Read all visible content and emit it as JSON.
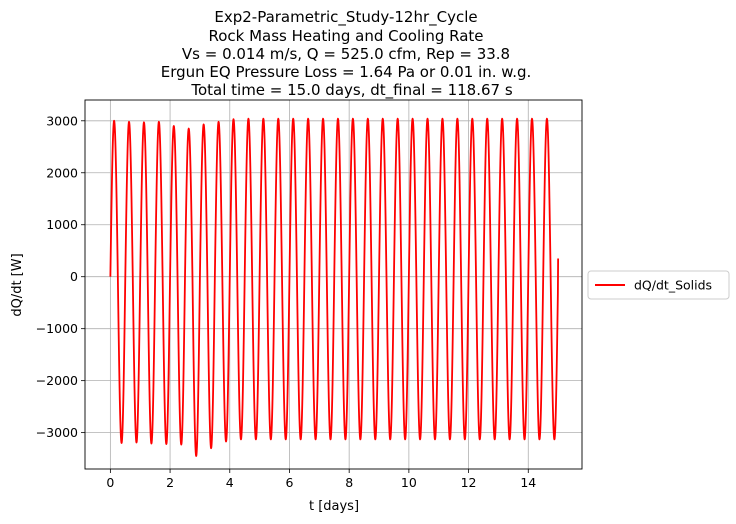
{
  "chart_data": {
    "type": "line",
    "title_lines": [
      "Exp2-Parametric_Study-12hr_Cycle",
      "Rock Mass Heating and Cooling Rate",
      "Vs = 0.014 m/s, Q = 525.0 cfm, Rep = 33.8",
      "Ergun EQ Pressure Loss = 1.64 Pa or 0.01 in. w.g.",
      "Total time = 15.0 days, dt_final = 118.67 s"
    ],
    "xlabel": "t [days]",
    "ylabel": "dQ/dt [W]",
    "xlim": [
      -0.85,
      15.8
    ],
    "ylim": [
      -3700,
      3400
    ],
    "xticks": [
      0,
      2,
      4,
      6,
      8,
      10,
      12,
      14
    ],
    "yticks": [
      -3000,
      -2000,
      -1000,
      0,
      1000,
      2000,
      3000
    ],
    "ytick_labels": [
      "−3000",
      "−2000",
      "−1000",
      "0",
      "1000",
      "2000",
      "3000"
    ],
    "grid": true,
    "legend_position": "center-right-outside",
    "series": [
      {
        "name": "dQ/dt_Solids",
        "color": "#ff0000",
        "cycle_period_days": 0.5,
        "t_end_days": 15.0,
        "end_value": 350,
        "peaks": [
          3000,
          2980,
          2970,
          2980,
          2900,
          2850,
          2930,
          2980,
          3030,
          3040,
          3040,
          3040,
          3040,
          3040,
          3040,
          3040,
          3040,
          3040,
          3040,
          3040,
          3040,
          3040,
          3040,
          3040,
          3040,
          3040,
          3040,
          3040,
          3040,
          3040
        ],
        "troughs": [
          -3200,
          -3190,
          -3210,
          -3220,
          -3230,
          -3450,
          -3300,
          -3170,
          -3130,
          -3130,
          -3130,
          -3130,
          -3130,
          -3130,
          -3130,
          -3130,
          -3130,
          -3130,
          -3130,
          -3130,
          -3130,
          -3130,
          -3130,
          -3130,
          -3130,
          -3130,
          -3130,
          -3130,
          -3130,
          -3130
        ]
      }
    ]
  }
}
